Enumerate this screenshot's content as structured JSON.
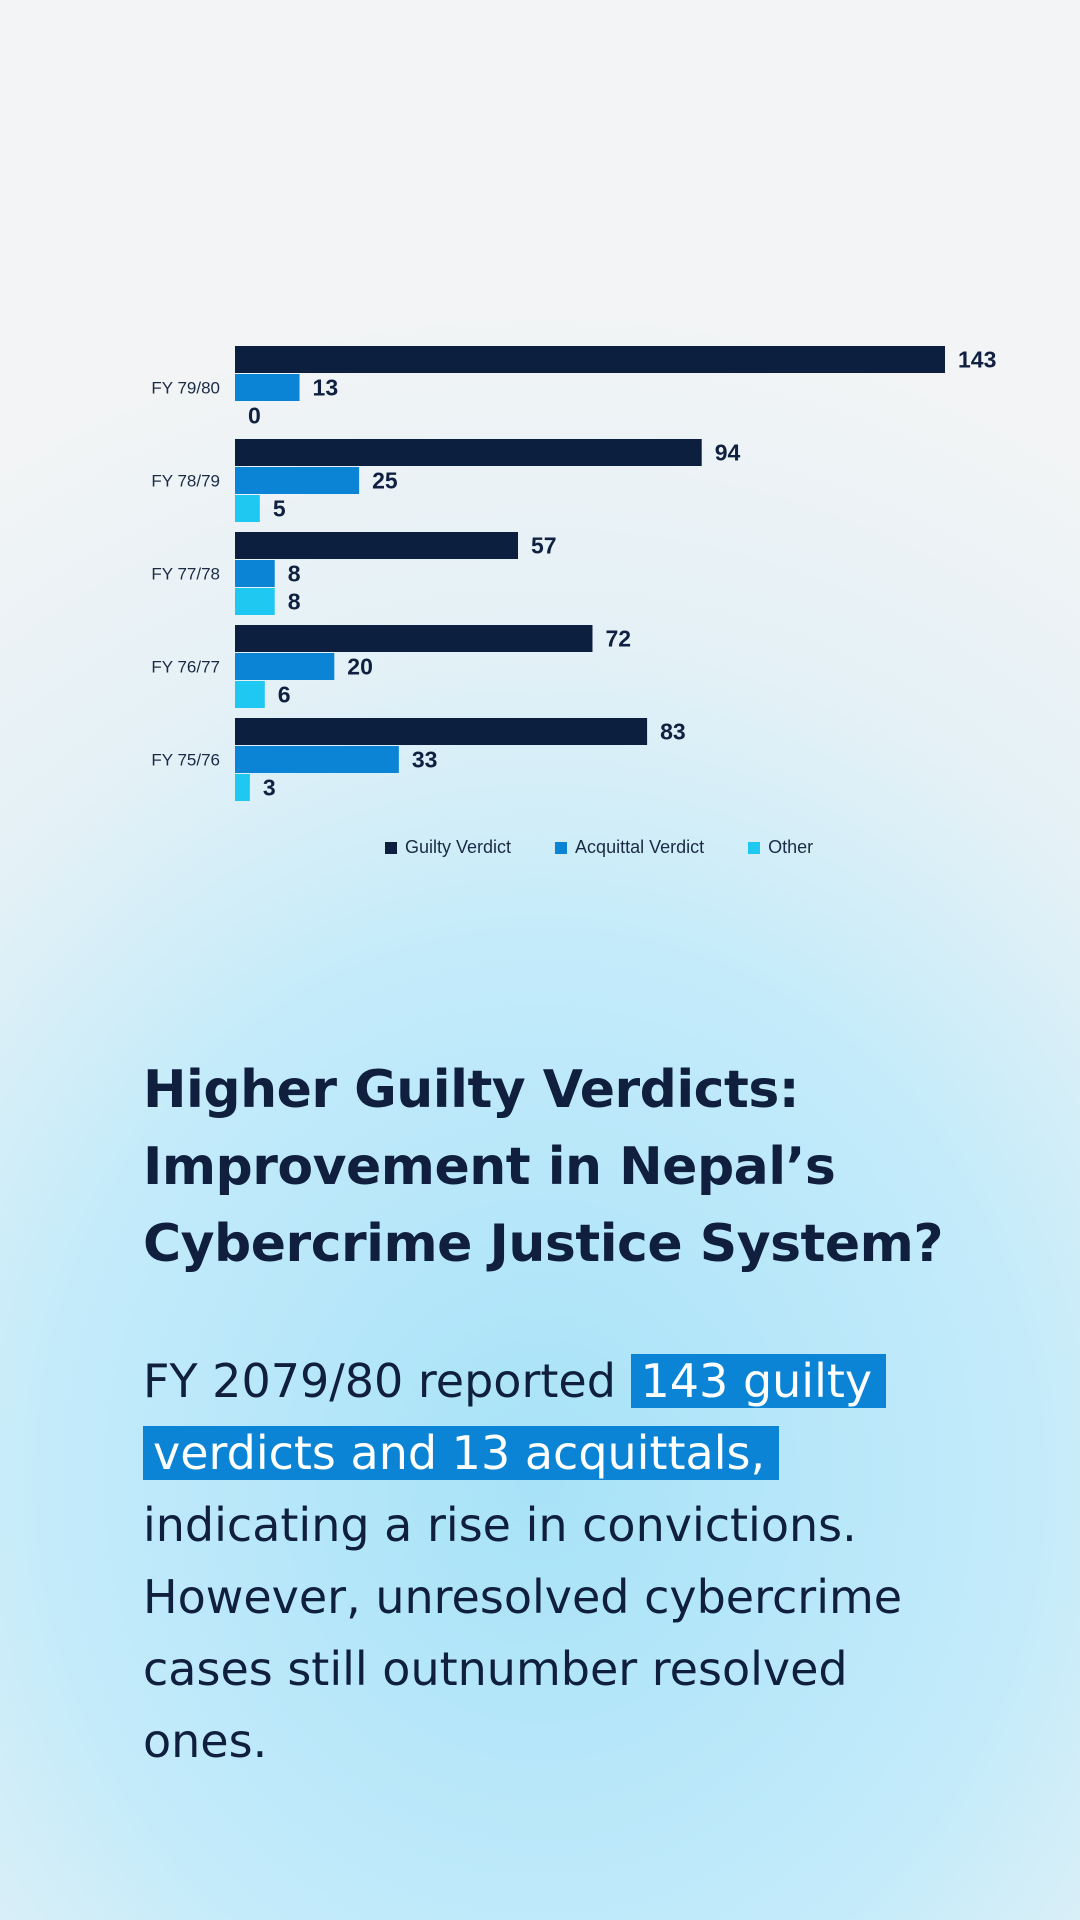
{
  "colors": {
    "guilty": "#0d1f3f",
    "acquittal": "#0b84d6",
    "other": "#1ec8f0",
    "highlight_bg": "#0b84d6",
    "text": "#0f1f3d"
  },
  "chart_data": {
    "type": "bar",
    "orientation": "horizontal",
    "categories": [
      "FY 79/80",
      "FY 78/79",
      "FY 77/78",
      "FY 76/77",
      "FY 75/76"
    ],
    "series": [
      {
        "name": "Guilty Verdict",
        "values": [
          143,
          94,
          57,
          72,
          83
        ]
      },
      {
        "name": "Acquittal Verdict",
        "values": [
          13,
          25,
          8,
          20,
          33
        ]
      },
      {
        "name": "Other",
        "values": [
          0,
          5,
          8,
          6,
          3
        ]
      }
    ],
    "xlim": [
      0,
      143
    ],
    "grid": false,
    "legend_position": "bottom"
  },
  "headline": {
    "lines": [
      "Higher Guilty Verdicts:",
      "Improvement in Nepal’s",
      "Cybercrime Justice System?"
    ]
  },
  "body": {
    "line1_plain": "FY 2079/80 reported ",
    "line1_highlight": "143 guilty",
    "line2_highlight": "verdicts and 13 acquittals,",
    "line3": "indicating a rise in convictions.",
    "line4": "However, unresolved cybercrime",
    "line5": "cases still outnumber resolved",
    "line6": "ones."
  }
}
